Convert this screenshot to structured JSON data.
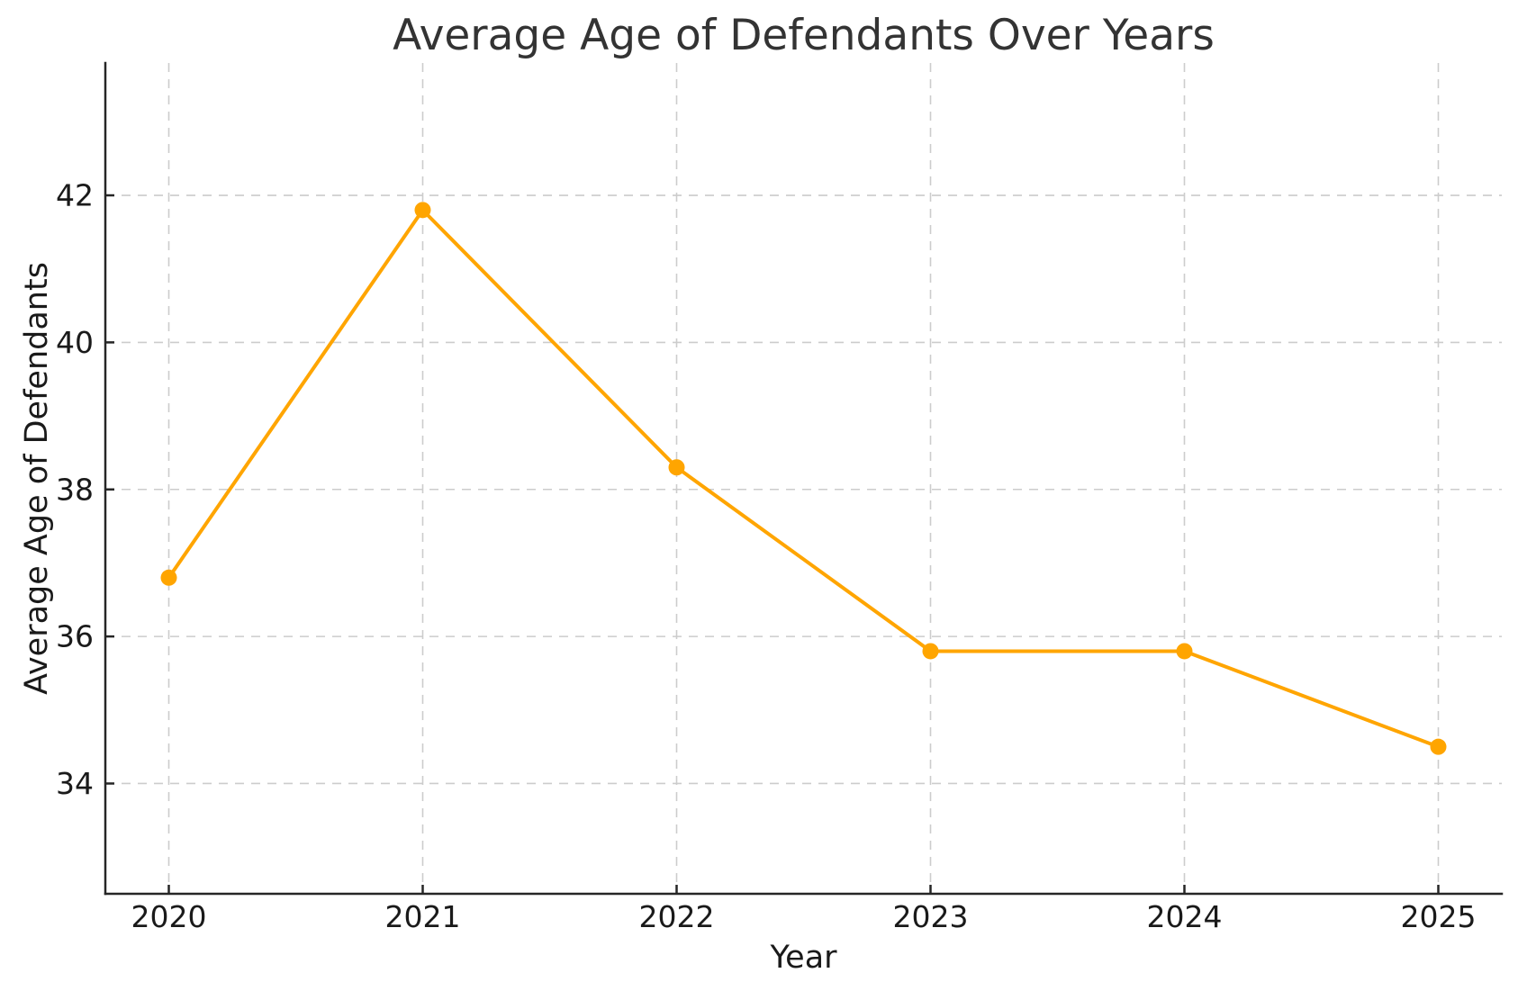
{
  "chart_data": {
    "type": "line",
    "title": "Average Age of Defendants Over Years",
    "xlabel": "Year",
    "ylabel": "Average Age of Defendants",
    "x": [
      2020,
      2021,
      2022,
      2023,
      2024,
      2025
    ],
    "values": [
      36.8,
      41.8,
      38.3,
      35.8,
      35.8,
      34.5
    ],
    "xticks": [
      2020,
      2021,
      2022,
      2023,
      2024,
      2025
    ],
    "yticks": [
      34,
      36,
      38,
      40,
      42
    ],
    "xlim": [
      2019.75,
      2025.25
    ],
    "ylim": [
      32.5,
      43.8
    ],
    "grid": true,
    "grid_linestyle": "dashed",
    "legend": "none",
    "marker": "circle",
    "style": {
      "line_color": "#FFA500",
      "marker_color": "#FFA500",
      "grid_color": "#CCCCCC",
      "spine_color": "#262626",
      "tick_label_color": "#1A1A1A",
      "axis_label_color": "#1A1A1A",
      "title_color": "#333333",
      "background_color": "#FFFFFF"
    }
  }
}
